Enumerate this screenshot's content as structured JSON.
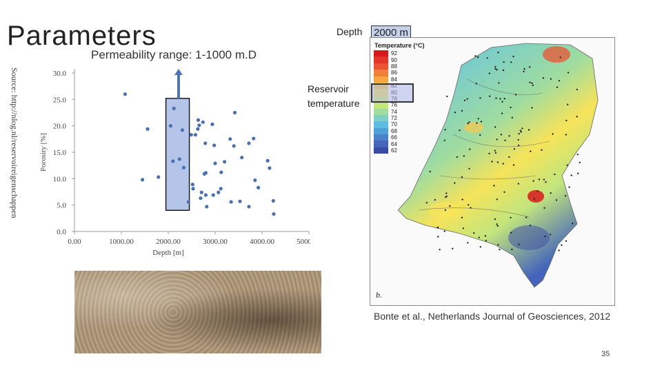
{
  "slide": {
    "title": "Parameters",
    "subtitle": "Permeability range: 1-1000 m.D",
    "source_note": "Source: http://nlog.nl/reservoireigenschappen",
    "page_number": "35"
  },
  "annotations": {
    "depth_label": "Depth",
    "depth_value": "2000 m",
    "reservoir_label": "Reservoir temperature"
  },
  "map": {
    "legend_title": "Temperature (°C)",
    "legend": [
      {
        "value": "92",
        "color": "#d7191c"
      },
      {
        "value": "90",
        "color": "#e3352a"
      },
      {
        "value": "88",
        "color": "#ea5433"
      },
      {
        "value": "86",
        "color": "#f07f3a"
      },
      {
        "value": "84",
        "color": "#f6a540"
      },
      {
        "value": "82",
        "color": "#fbc84b"
      },
      {
        "value": "80",
        "color": "#f6e35a"
      },
      {
        "value": "78",
        "color": "#e3ee6a"
      },
      {
        "value": "76",
        "color": "#c2e57d"
      },
      {
        "value": "74",
        "color": "#a0dca0"
      },
      {
        "value": "72",
        "color": "#7fcfc4"
      },
      {
        "value": "70",
        "color": "#5dbde0"
      },
      {
        "value": "68",
        "color": "#4ea0da"
      },
      {
        "value": "66",
        "color": "#4982cb"
      },
      {
        "value": "64",
        "color": "#4465bb"
      },
      {
        "value": "62",
        "color": "#3a4ba6"
      }
    ],
    "panel_letter": "b.",
    "citation": "Bonte et al., Netherlands Journal of Geosciences, 2012"
  },
  "chart_data": {
    "type": "scatter",
    "title": "",
    "xlabel": "Depth [m]",
    "ylabel": "Porosity [%]",
    "xlim": [
      0,
      5000
    ],
    "ylim": [
      0,
      30
    ],
    "x_ticks": [
      "0.00",
      "1000.00",
      "2000.00",
      "3000.00",
      "4000.00",
      "5000.00"
    ],
    "y_ticks": [
      "0.0",
      "5.0",
      "10.0",
      "15.0",
      "20.0",
      "25.0",
      "30.0"
    ],
    "grid": false,
    "highlight_range": {
      "x": [
        1950,
        2450
      ],
      "y": [
        4,
        25.2
      ]
    },
    "arrow": {
      "x": 2220,
      "from_y": 25.2,
      "to_y": 30.8
    },
    "points": [
      [
        1080,
        26.0
      ],
      [
        1450,
        9.8
      ],
      [
        1560,
        19.4
      ],
      [
        1790,
        10.3
      ],
      [
        2050,
        20.0
      ],
      [
        2120,
        23.3
      ],
      [
        2100,
        13.3
      ],
      [
        2240,
        13.7
      ],
      [
        2300,
        19.2
      ],
      [
        2330,
        12.1
      ],
      [
        2430,
        5.6
      ],
      [
        2490,
        18.3
      ],
      [
        2520,
        8.9
      ],
      [
        2530,
        8.1
      ],
      [
        2580,
        18.3
      ],
      [
        2630,
        19.4
      ],
      [
        2660,
        20.1
      ],
      [
        2640,
        21.1
      ],
      [
        2690,
        6.3
      ],
      [
        2710,
        7.4
      ],
      [
        2740,
        20.7
      ],
      [
        2770,
        10.9
      ],
      [
        2790,
        16.7
      ],
      [
        2800,
        11.1
      ],
      [
        2800,
        6.9
      ],
      [
        2820,
        4.7
      ],
      [
        2940,
        20.3
      ],
      [
        2960,
        6.9
      ],
      [
        2980,
        16.3
      ],
      [
        3000,
        12.9
      ],
      [
        3070,
        7.4
      ],
      [
        3120,
        8.1
      ],
      [
        3130,
        11.2
      ],
      [
        3200,
        13.2
      ],
      [
        3320,
        17.5
      ],
      [
        3340,
        5.6
      ],
      [
        3400,
        16.2
      ],
      [
        3420,
        22.5
      ],
      [
        3530,
        5.7
      ],
      [
        3570,
        14.0
      ],
      [
        3720,
        16.7
      ],
      [
        3720,
        4.7
      ],
      [
        3820,
        17.6
      ],
      [
        3850,
        9.7
      ],
      [
        3920,
        8.3
      ],
      [
        4120,
        13.4
      ],
      [
        4160,
        12.0
      ],
      [
        4240,
        5.8
      ],
      [
        4250,
        3.3
      ]
    ]
  }
}
